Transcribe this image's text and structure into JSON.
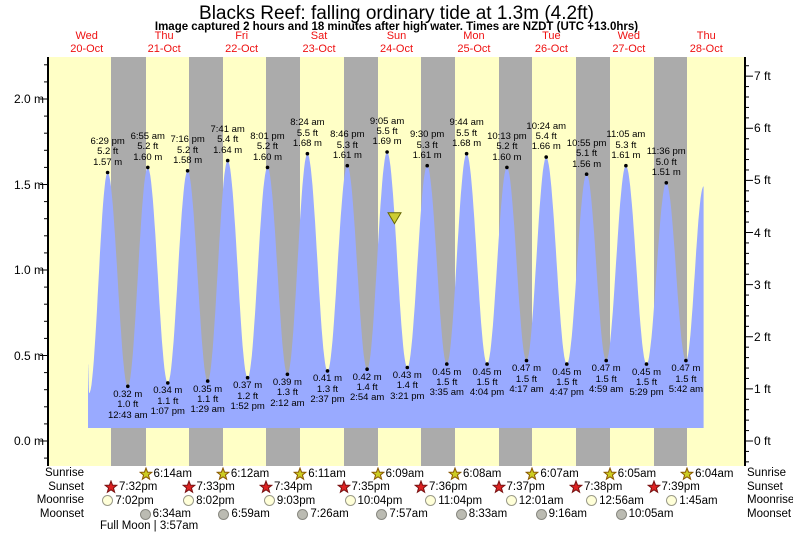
{
  "header": {
    "title": "Blacks Reef: falling  ordinary tide at 1.3m (4.2ft)",
    "subtitle": "Image captured 2 hours and 18 minutes after high water. Times are NZDT (UTC +13.0hrs)"
  },
  "days": [
    {
      "dow": "Wed",
      "date": "20-Oct"
    },
    {
      "dow": "Thu",
      "date": "21-Oct"
    },
    {
      "dow": "Fri",
      "date": "22-Oct"
    },
    {
      "dow": "Sat",
      "date": "23-Oct"
    },
    {
      "dow": "Sun",
      "date": "24-Oct"
    },
    {
      "dow": "Mon",
      "date": "25-Oct"
    },
    {
      "dow": "Tue",
      "date": "26-Oct"
    },
    {
      "dow": "Wed",
      "date": "27-Oct"
    },
    {
      "dow": "Thu",
      "date": "28-Oct"
    }
  ],
  "chart_data": {
    "type": "area",
    "title": "Blacks Reef tide heights",
    "x_axis": "time, Wed 20-Oct 00:00 through Thu 28-Oct 24:00 (NZDT)",
    "ylabel_left": "metres",
    "ylabel_right": "feet",
    "ylim_m": [
      0.0,
      2.2
    ],
    "ylim_ft": [
      0,
      7
    ],
    "left_tick_labels": [
      {
        "m": 2.0,
        "label": "2.0 m"
      },
      {
        "m": 1.5,
        "label": "1.5 m"
      },
      {
        "m": 1.0,
        "label": "1.0 m"
      },
      {
        "m": 0.5,
        "label": "0.5 m"
      },
      {
        "m": 0.0,
        "label": "0.0 m"
      }
    ],
    "right_tick_labels": [
      {
        "ft": 7,
        "label": "7 ft"
      },
      {
        "ft": 6,
        "label": "6 ft"
      },
      {
        "ft": 5,
        "label": "5 ft"
      },
      {
        "ft": 4,
        "label": "4 ft"
      },
      {
        "ft": 3,
        "label": "3 ft"
      },
      {
        "ft": 2,
        "label": "2 ft"
      },
      {
        "ft": 1,
        "label": "1 ft"
      },
      {
        "ft": 0,
        "label": "0 ft"
      }
    ],
    "points": [
      {
        "day": 0,
        "time": "12:24 pm",
        "m": 0.45,
        "edge": true
      },
      {
        "day": 0,
        "time": "12:45 pm",
        "m": 0.28,
        "type": "low",
        "hidden": true
      },
      {
        "day": 0,
        "time": "6:29 pm",
        "m": 1.57,
        "type": "high",
        "ft_label": "5.2 ft",
        "m_label": "1.57 m"
      },
      {
        "day": 1,
        "time": "12:43 am",
        "m": 0.32,
        "type": "low",
        "ft_label": "1.0 ft",
        "m_label": "0.32 m"
      },
      {
        "day": 1,
        "time": "6:55 am",
        "m": 1.6,
        "type": "high",
        "ft_label": "5.2 ft",
        "m_label": "1.60 m"
      },
      {
        "day": 1,
        "time": "1:07 pm",
        "m": 0.34,
        "type": "low",
        "ft_label": "1.1 ft",
        "m_label": "0.34 m"
      },
      {
        "day": 1,
        "time": "7:16 pm",
        "m": 1.58,
        "type": "high",
        "ft_label": "5.2 ft",
        "m_label": "1.58 m"
      },
      {
        "day": 2,
        "time": "1:29 am",
        "m": 0.35,
        "type": "low",
        "ft_label": "1.1 ft",
        "m_label": "0.35 m"
      },
      {
        "day": 2,
        "time": "7:41 am",
        "m": 1.64,
        "type": "high",
        "ft_label": "5.4 ft",
        "m_label": "1.64 m"
      },
      {
        "day": 2,
        "time": "1:52 pm",
        "m": 0.37,
        "type": "low",
        "ft_label": "1.2 ft",
        "m_label": "0.37 m"
      },
      {
        "day": 2,
        "time": "8:01 pm",
        "m": 1.6,
        "type": "high",
        "ft_label": "5.2 ft",
        "m_label": "1.60 m"
      },
      {
        "day": 3,
        "time": "2:12 am",
        "m": 0.39,
        "type": "low",
        "ft_label": "1.3 ft",
        "m_label": "0.39 m"
      },
      {
        "day": 3,
        "time": "8:24 am",
        "m": 1.68,
        "type": "high",
        "ft_label": "5.5 ft",
        "m_label": "1.68 m"
      },
      {
        "day": 3,
        "time": "2:37 pm",
        "m": 0.41,
        "type": "low",
        "ft_label": "1.3 ft",
        "m_label": "0.41 m"
      },
      {
        "day": 3,
        "time": "8:46 pm",
        "m": 1.61,
        "type": "high",
        "ft_label": "5.3 ft",
        "m_label": "1.61 m"
      },
      {
        "day": 4,
        "time": "2:54 am",
        "m": 0.42,
        "type": "low",
        "ft_label": "1.4 ft",
        "m_label": "0.42 m"
      },
      {
        "day": 4,
        "time": "9:05 am",
        "m": 1.69,
        "type": "high",
        "ft_label": "5.5 ft",
        "m_label": "1.69 m"
      },
      {
        "day": 4,
        "time": "3:21 pm",
        "m": 0.43,
        "type": "low",
        "ft_label": "1.4 ft",
        "m_label": "0.43 m"
      },
      {
        "day": 4,
        "time": "9:30 pm",
        "m": 1.61,
        "type": "high",
        "ft_label": "5.3 ft",
        "m_label": "1.61 m"
      },
      {
        "day": 5,
        "time": "3:35 am",
        "m": 0.45,
        "type": "low",
        "ft_label": "1.5 ft",
        "m_label": "0.45 m"
      },
      {
        "day": 5,
        "time": "9:44 am",
        "m": 1.68,
        "type": "high",
        "ft_label": "5.5 ft",
        "m_label": "1.68 m"
      },
      {
        "day": 5,
        "time": "4:04 pm",
        "m": 0.45,
        "type": "low",
        "ft_label": "1.5 ft",
        "m_label": "0.45 m"
      },
      {
        "day": 5,
        "time": "10:13 pm",
        "m": 1.6,
        "type": "high",
        "ft_label": "5.2 ft",
        "m_label": "1.60 m"
      },
      {
        "day": 6,
        "time": "4:17 am",
        "m": 0.47,
        "type": "low",
        "ft_label": "1.5 ft",
        "m_label": "0.47 m"
      },
      {
        "day": 6,
        "time": "10:24 am",
        "m": 1.66,
        "type": "high",
        "ft_label": "5.4 ft",
        "m_label": "1.66 m"
      },
      {
        "day": 6,
        "time": "4:47 pm",
        "m": 0.45,
        "type": "low",
        "ft_label": "1.5 ft",
        "m_label": "0.45 m"
      },
      {
        "day": 6,
        "time": "10:55 pm",
        "m": 1.56,
        "type": "high",
        "ft_label": "5.1 ft",
        "m_label": "1.56 m"
      },
      {
        "day": 7,
        "time": "4:59 am",
        "m": 0.47,
        "type": "low",
        "ft_label": "1.5 ft",
        "m_label": "0.47 m"
      },
      {
        "day": 7,
        "time": "11:05 am",
        "m": 1.61,
        "type": "high",
        "ft_label": "5.3 ft",
        "m_label": "1.61 m"
      },
      {
        "day": 7,
        "time": "5:29 pm",
        "m": 0.45,
        "type": "low",
        "ft_label": "1.5 ft",
        "m_label": "0.45 m"
      },
      {
        "day": 7,
        "time": "11:36 pm",
        "m": 1.51,
        "type": "high",
        "ft_label": "5.0 ft",
        "m_label": "1.51 m"
      },
      {
        "day": 8,
        "time": "5:42 am",
        "m": 0.47,
        "type": "low",
        "ft_label": "1.5 ft",
        "m_label": "0.47 m"
      },
      {
        "day": 8,
        "time": "11:10 am",
        "m": 1.49,
        "edge": true
      }
    ],
    "current_marker": {
      "day": 4,
      "time": "11:23 am",
      "m": 1.3
    }
  },
  "astronomy": {
    "rows": [
      {
        "id": "sunrise",
        "label": "Sunrise",
        "icon": "sunrise-star-icon",
        "events": [
          {
            "day": 1,
            "time": "6:14am"
          },
          {
            "day": 2,
            "time": "6:12am"
          },
          {
            "day": 3,
            "time": "6:11am"
          },
          {
            "day": 4,
            "time": "6:09am"
          },
          {
            "day": 5,
            "time": "6:08am"
          },
          {
            "day": 6,
            "time": "6:07am"
          },
          {
            "day": 7,
            "time": "6:05am"
          },
          {
            "day": 8,
            "time": "6:04am"
          }
        ]
      },
      {
        "id": "sunset",
        "label": "Sunset",
        "icon": "sunset-star-icon",
        "events": [
          {
            "day": 0,
            "time": "7:32pm"
          },
          {
            "day": 1,
            "time": "7:33pm"
          },
          {
            "day": 2,
            "time": "7:34pm"
          },
          {
            "day": 3,
            "time": "7:35pm"
          },
          {
            "day": 4,
            "time": "7:36pm"
          },
          {
            "day": 5,
            "time": "7:37pm"
          },
          {
            "day": 6,
            "time": "7:38pm"
          },
          {
            "day": 7,
            "time": "7:39pm"
          }
        ]
      },
      {
        "id": "moonrise",
        "label": "Moonrise",
        "icon": "moonrise-icon",
        "events": [
          {
            "day": 0,
            "time": "7:02pm"
          },
          {
            "day": 1,
            "time": "8:02pm"
          },
          {
            "day": 2,
            "time": "9:03pm"
          },
          {
            "day": 3,
            "time": "10:04pm"
          },
          {
            "day": 4,
            "time": "11:04pm"
          },
          {
            "day": 6,
            "time": "12:01am"
          },
          {
            "day": 7,
            "time": "12:56am"
          },
          {
            "day": 8,
            "time": "1:45am"
          }
        ]
      },
      {
        "id": "moonset",
        "label": "Moonset",
        "icon": "moonset-icon",
        "events": [
          {
            "day": 1,
            "time": "6:34am"
          },
          {
            "day": 2,
            "time": "6:59am"
          },
          {
            "day": 3,
            "time": "7:26am"
          },
          {
            "day": 4,
            "time": "7:57am"
          },
          {
            "day": 5,
            "time": "8:33am"
          },
          {
            "day": 6,
            "time": "9:16am"
          },
          {
            "day": 7,
            "time": "10:05am"
          }
        ]
      }
    ],
    "footnote": "Full Moon | 3:57am"
  },
  "colors": {
    "day_band": "#FFFFC6",
    "night_band": "#ABABAB",
    "tide_fill": "#99AAFF",
    "date_red": "#EE1111",
    "marker_fill": "#CCCC33",
    "marker_stroke": "#666600",
    "sunrise_star_fill": "#CCCC22",
    "sunrise_star_stroke": "#885500",
    "sunset_star_fill": "#DD2222",
    "sunset_star_stroke": "#771111",
    "moonrise_fill": "#FFFFD8",
    "moonrise_stroke": "#999988",
    "moonset_fill": "#BBBBB2",
    "moonset_stroke": "#888880"
  }
}
